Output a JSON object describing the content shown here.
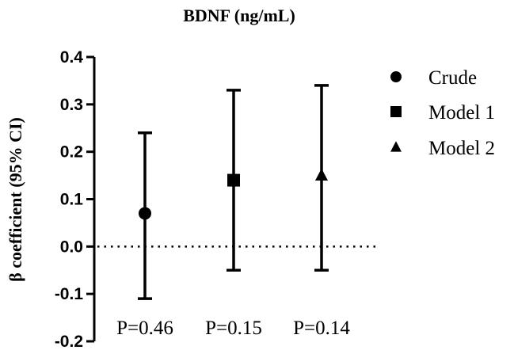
{
  "chart_data": {
    "type": "scatter",
    "title": "BDNF (ng/mL)",
    "ylabel": "β coefficient (95% CI)",
    "xlabel": "",
    "ylim": [
      -0.2,
      0.4
    ],
    "yticks": [
      {
        "value": -0.2,
        "label": "-0.2"
      },
      {
        "value": -0.1,
        "label": "-0.1"
      },
      {
        "value": 0.0,
        "label": "0.0"
      },
      {
        "value": 0.1,
        "label": "0.1"
      },
      {
        "value": 0.2,
        "label": "0.2"
      },
      {
        "value": 0.3,
        "label": "0.3"
      },
      {
        "value": 0.4,
        "label": "0.4"
      }
    ],
    "reference_line": {
      "value": 0.0,
      "style": "dotted"
    },
    "legend_position": "right",
    "series": [
      {
        "name": "Crude",
        "marker": "circle",
        "estimate": 0.07,
        "ci_low": -0.11,
        "ci_high": 0.24,
        "p_label": "P=0.46"
      },
      {
        "name": "Model 1",
        "marker": "square",
        "estimate": 0.14,
        "ci_low": -0.05,
        "ci_high": 0.33,
        "p_label": "P=0.15"
      },
      {
        "name": "Model 2",
        "marker": "triangle",
        "estimate": 0.15,
        "ci_low": -0.05,
        "ci_high": 0.34,
        "p_label": "P=0.14"
      }
    ],
    "colors": {
      "marks": "#000000"
    }
  }
}
